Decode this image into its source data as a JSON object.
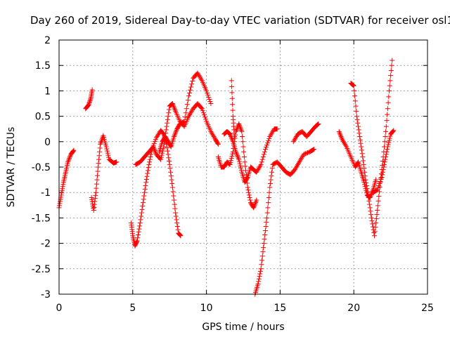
{
  "chart_data": {
    "type": "scatter",
    "title": "Day 260 of 2019, Sidereal Day-to-day VTEC variation (SDTVAR) for receiver osl1",
    "xlabel": "GPS time / hours",
    "ylabel": "SDTVAR / TECUs",
    "xlim": [
      0,
      25
    ],
    "ylim": [
      -3,
      2
    ],
    "xticks": [
      0,
      5,
      10,
      15,
      20,
      25
    ],
    "xtick_labels": [
      "0",
      "5",
      "10",
      "15",
      "20",
      "25"
    ],
    "yticks": [
      -3,
      -2.5,
      -2,
      -1.5,
      -1,
      -0.5,
      0,
      0.5,
      1,
      1.5,
      2
    ],
    "ytick_labels": [
      "-3",
      "-2.5",
      "-2",
      "-1.5",
      "-1",
      "-0.5",
      "0",
      "0.5",
      "1",
      "1.5",
      "2"
    ],
    "grid": true,
    "marker": "+",
    "color": "#ff0000",
    "series": [
      {
        "name": "arc1",
        "points": [
          [
            0.0,
            -1.3
          ],
          [
            0.15,
            -1.05
          ],
          [
            0.3,
            -0.8
          ],
          [
            0.45,
            -0.6
          ],
          [
            0.6,
            -0.4
          ],
          [
            0.8,
            -0.25
          ],
          [
            1.0,
            -0.17
          ]
        ]
      },
      {
        "name": "arc2",
        "points": [
          [
            1.8,
            0.65
          ],
          [
            2.0,
            0.72
          ],
          [
            2.15,
            0.85
          ],
          [
            2.25,
            1.02
          ]
        ]
      },
      {
        "name": "arc3",
        "points": [
          [
            2.2,
            -1.1
          ],
          [
            2.35,
            -1.35
          ],
          [
            2.5,
            -1.0
          ],
          [
            2.65,
            -0.5
          ],
          [
            2.8,
            -0.05
          ],
          [
            3.0,
            0.12
          ],
          [
            3.2,
            -0.1
          ],
          [
            3.4,
            -0.35
          ],
          [
            3.7,
            -0.42
          ],
          [
            3.9,
            -0.4
          ]
        ]
      },
      {
        "name": "arc4",
        "points": [
          [
            4.9,
            -1.6
          ],
          [
            5.0,
            -1.85
          ],
          [
            5.15,
            -2.05
          ],
          [
            5.3,
            -1.95
          ],
          [
            5.5,
            -1.6
          ],
          [
            5.7,
            -1.2
          ],
          [
            5.9,
            -0.8
          ],
          [
            6.1,
            -0.45
          ],
          [
            6.3,
            -0.15
          ],
          [
            6.6,
            0.08
          ],
          [
            6.9,
            0.22
          ],
          [
            7.1,
            0.15
          ],
          [
            7.3,
            -0.05
          ],
          [
            7.5,
            -0.45
          ],
          [
            7.7,
            -0.9
          ],
          [
            7.9,
            -1.4
          ],
          [
            8.1,
            -1.8
          ],
          [
            8.25,
            -1.85
          ]
        ]
      },
      {
        "name": "arc5",
        "points": [
          [
            5.2,
            -0.45
          ],
          [
            5.5,
            -0.4
          ],
          [
            5.8,
            -0.3
          ],
          [
            6.1,
            -0.2
          ],
          [
            6.4,
            -0.1
          ],
          [
            6.6,
            -0.25
          ],
          [
            6.9,
            -0.35
          ],
          [
            7.1,
            -0.1
          ],
          [
            7.3,
            0.3
          ],
          [
            7.5,
            0.7
          ],
          [
            7.7,
            0.75
          ],
          [
            7.9,
            0.6
          ],
          [
            8.2,
            0.4
          ],
          [
            8.5,
            0.3
          ],
          [
            8.8,
            0.5
          ],
          [
            9.1,
            0.65
          ],
          [
            9.4,
            0.75
          ],
          [
            9.7,
            0.65
          ],
          [
            10.0,
            0.4
          ],
          [
            10.3,
            0.2
          ],
          [
            10.6,
            0.05
          ],
          [
            10.8,
            -0.05
          ]
        ]
      },
      {
        "name": "arc6",
        "points": [
          [
            6.8,
            -0.2
          ],
          [
            7.0,
            0.0
          ],
          [
            7.2,
            0.1
          ],
          [
            7.4,
            0.0
          ],
          [
            7.6,
            -0.1
          ],
          [
            7.8,
            0.1
          ],
          [
            8.0,
            0.25
          ],
          [
            8.2,
            0.35
          ],
          [
            8.5,
            0.4
          ],
          [
            8.8,
            0.9
          ],
          [
            9.1,
            1.25
          ],
          [
            9.4,
            1.35
          ],
          [
            9.7,
            1.2
          ],
          [
            10.0,
            1.0
          ],
          [
            10.3,
            0.75
          ]
        ]
      },
      {
        "name": "arc7",
        "points": [
          [
            10.8,
            -0.3
          ],
          [
            11.0,
            -0.5
          ],
          [
            11.2,
            -0.5
          ],
          [
            11.4,
            -0.4
          ],
          [
            11.6,
            -0.45
          ],
          [
            11.8,
            -0.2
          ],
          [
            12.0,
            0.2
          ],
          [
            12.2,
            0.35
          ],
          [
            12.4,
            0.2
          ],
          [
            12.6,
            -0.4
          ],
          [
            12.8,
            -0.9
          ],
          [
            13.0,
            -1.2
          ],
          [
            13.2,
            -1.3
          ],
          [
            13.4,
            -1.15
          ]
        ]
      },
      {
        "name": "arc8",
        "points": [
          [
            11.2,
            0.15
          ],
          [
            11.4,
            0.2
          ],
          [
            11.6,
            0.15
          ],
          [
            11.8,
            0.0
          ],
          [
            12.0,
            -0.2
          ],
          [
            12.2,
            -0.35
          ],
          [
            12.4,
            -0.6
          ],
          [
            12.6,
            -0.8
          ],
          [
            12.8,
            -0.7
          ],
          [
            13.0,
            -0.5
          ],
          [
            13.2,
            -0.55
          ],
          [
            13.4,
            -0.6
          ],
          [
            13.7,
            -0.45
          ],
          [
            14.0,
            -0.15
          ],
          [
            14.3,
            0.1
          ],
          [
            14.6,
            0.25
          ],
          [
            14.8,
            0.25
          ]
        ]
      },
      {
        "name": "arc9",
        "points": [
          [
            11.7,
            1.2
          ],
          [
            11.8,
            0.5
          ],
          [
            11.9,
            0.1
          ]
        ]
      },
      {
        "name": "arc10",
        "points": [
          [
            13.3,
            -3.0
          ],
          [
            13.5,
            -2.8
          ],
          [
            13.7,
            -2.5
          ],
          [
            13.9,
            -2.0
          ],
          [
            14.1,
            -1.5
          ],
          [
            14.3,
            -0.9
          ],
          [
            14.5,
            -0.45
          ],
          [
            14.8,
            -0.4
          ],
          [
            15.1,
            -0.5
          ],
          [
            15.4,
            -0.6
          ],
          [
            15.7,
            -0.65
          ],
          [
            16.0,
            -0.55
          ],
          [
            16.3,
            -0.4
          ],
          [
            16.6,
            -0.25
          ],
          [
            17.0,
            -0.2
          ],
          [
            17.3,
            -0.15
          ]
        ]
      },
      {
        "name": "arc11",
        "points": [
          [
            15.9,
            0.0
          ],
          [
            16.2,
            0.15
          ],
          [
            16.5,
            0.2
          ],
          [
            16.8,
            0.1
          ],
          [
            17.1,
            0.2
          ],
          [
            17.4,
            0.3
          ],
          [
            17.6,
            0.35
          ]
        ]
      },
      {
        "name": "arc12",
        "points": [
          [
            19.0,
            0.2
          ],
          [
            19.2,
            0.05
          ],
          [
            19.5,
            -0.1
          ],
          [
            19.8,
            -0.3
          ],
          [
            20.1,
            -0.5
          ],
          [
            20.3,
            -0.4
          ],
          [
            20.5,
            -0.6
          ],
          [
            20.7,
            -0.8
          ],
          [
            20.9,
            -1.05
          ],
          [
            21.1,
            -1.1
          ],
          [
            21.3,
            -0.95
          ],
          [
            21.5,
            -0.75
          ]
        ]
      },
      {
        "name": "arc13",
        "points": [
          [
            19.8,
            1.15
          ],
          [
            20.0,
            1.1
          ],
          [
            20.2,
            0.5
          ],
          [
            20.4,
            0.1
          ],
          [
            20.6,
            -0.3
          ],
          [
            20.8,
            -0.75
          ],
          [
            21.0,
            -1.1
          ],
          [
            21.2,
            -1.5
          ],
          [
            21.4,
            -1.85
          ],
          [
            21.6,
            -1.35
          ],
          [
            21.8,
            -0.8
          ],
          [
            22.0,
            -0.3
          ],
          [
            22.2,
            0.3
          ],
          [
            22.4,
            1.0
          ],
          [
            22.6,
            1.6
          ]
        ]
      },
      {
        "name": "arc14",
        "points": [
          [
            21.3,
            -1.0
          ],
          [
            21.6,
            -0.95
          ],
          [
            21.9,
            -0.7
          ],
          [
            22.1,
            -0.4
          ],
          [
            22.3,
            -0.1
          ],
          [
            22.5,
            0.15
          ],
          [
            22.7,
            0.22
          ]
        ]
      }
    ]
  }
}
